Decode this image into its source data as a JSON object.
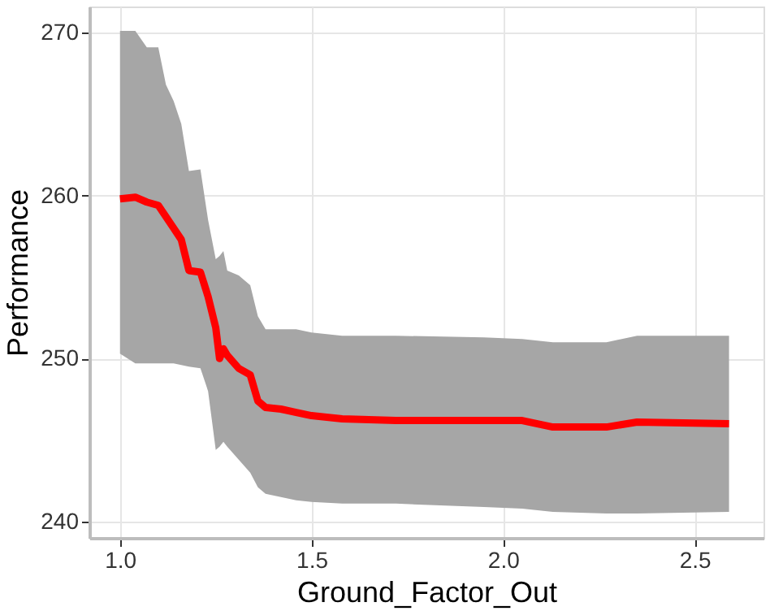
{
  "chart_data": {
    "type": "line",
    "xlabel": "Ground_Factor_Out",
    "ylabel": "Performance",
    "xlim": [
      0.92,
      2.68
    ],
    "ylim": [
      239,
      271.6
    ],
    "xticks": [
      {
        "value": 1,
        "label": "1.0"
      },
      {
        "value": 1.5,
        "label": "1.5"
      },
      {
        "value": 2,
        "label": "2.0"
      },
      {
        "value": 2.5,
        "label": "2.5"
      }
    ],
    "yticks": [
      240,
      250,
      260,
      270
    ],
    "grid": true,
    "line_style": "solid",
    "marker": "none",
    "series": [
      {
        "color": "#ff0000",
        "x": [
          1.0,
          1.04,
          1.07,
          1.1,
          1.12,
          1.14,
          1.16,
          1.18,
          1.21,
          1.23,
          1.25,
          1.26,
          1.27,
          1.28,
          1.31,
          1.34,
          1.36,
          1.38,
          1.42,
          1.46,
          1.5,
          1.58,
          1.72,
          1.95,
          2.05,
          2.13,
          2.27,
          2.35,
          2.59
        ],
        "values": [
          259.8,
          259.9,
          259.6,
          259.4,
          258.7,
          258.0,
          257.3,
          255.4,
          255.3,
          253.8,
          251.9,
          250.0,
          250.6,
          250.2,
          249.4,
          249.0,
          247.4,
          247.0,
          246.9,
          246.7,
          246.5,
          246.3,
          246.2,
          246.2,
          246.2,
          245.8,
          245.8,
          246.1,
          246.0
        ],
        "upper": [
          270.1,
          270.1,
          269.1,
          269.1,
          266.8,
          265.8,
          264.4,
          261.5,
          261.6,
          258.5,
          256.1,
          256.3,
          256.6,
          255.4,
          255.1,
          254.5,
          252.6,
          251.8,
          251.8,
          251.8,
          251.6,
          251.4,
          251.4,
          251.3,
          251.2,
          251.0,
          251.0,
          251.4,
          251.4
        ],
        "lower": [
          250.3,
          249.7,
          249.7,
          249.7,
          249.7,
          249.7,
          249.6,
          249.5,
          249.4,
          248.0,
          244.4,
          244.6,
          244.9,
          244.6,
          243.8,
          243.0,
          242.1,
          241.7,
          241.5,
          241.3,
          241.2,
          241.1,
          241.1,
          240.9,
          240.8,
          240.6,
          240.5,
          240.5,
          240.6
        ]
      }
    ]
  }
}
